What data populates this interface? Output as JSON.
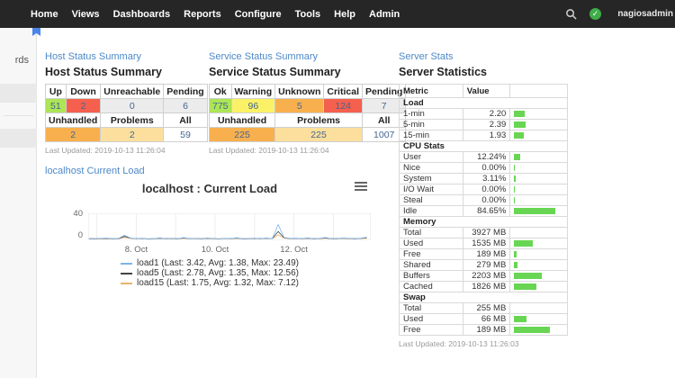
{
  "navbar": {
    "items": [
      "Home",
      "Views",
      "Dashboards",
      "Reports",
      "Configure",
      "Tools",
      "Help",
      "Admin"
    ],
    "user": "nagiosadmin",
    "icons": {
      "search": "search-icon",
      "status": "check-circle-icon",
      "user": "person-icon"
    }
  },
  "sidebar": {
    "fragment": "rds"
  },
  "host": {
    "link_label": "Host Status Summary",
    "title": "Host Status Summary",
    "col_up": "Up",
    "col_down": "Down",
    "col_unreachable": "Unreachable",
    "col_pending": "Pending",
    "up": "51",
    "down": "2",
    "unreachable": "0",
    "pending": "6",
    "col_unhandled": "Unhandled",
    "col_problems": "Problems",
    "col_all": "All",
    "unhandled": "2",
    "problems": "2",
    "all": "59",
    "last_updated": "Last Updated: 2019-10-13 11:26:04"
  },
  "service": {
    "link_label": "Service Status Summary",
    "title": "Service Status Summary",
    "col_ok": "Ok",
    "col_warning": "Warning",
    "col_unknown": "Unknown",
    "col_critical": "Critical",
    "col_pending": "Pending",
    "ok": "775",
    "warning": "96",
    "unknown": "5",
    "critical": "124",
    "pending": "7",
    "col_unhandled": "Unhandled",
    "col_problems": "Problems",
    "col_all": "All",
    "unhandled": "225",
    "problems": "225",
    "all": "1007",
    "last_updated": "Last Updated: 2019-10-13 11:26:04"
  },
  "server_stats": {
    "link_label": "Server Stats",
    "title": "Server Statistics",
    "col_metric": "Metric",
    "col_value": "Value",
    "bar_color": "#68d653",
    "rows": [
      {
        "type": "section",
        "label": "Load"
      },
      {
        "type": "row",
        "label": "1-min",
        "value": "2.20",
        "bar": 22
      },
      {
        "type": "row",
        "label": "5-min",
        "value": "2.39",
        "bar": 24
      },
      {
        "type": "row",
        "label": "15-min",
        "value": "1.93",
        "bar": 19
      },
      {
        "type": "section",
        "label": "CPU Stats"
      },
      {
        "type": "row",
        "label": "User",
        "value": "12.24%",
        "bar": 12
      },
      {
        "type": "row",
        "label": "Nice",
        "value": "0.00%",
        "bar": 1
      },
      {
        "type": "row",
        "label": "System",
        "value": "3.11%",
        "bar": 4
      },
      {
        "type": "row",
        "label": "I/O Wait",
        "value": "0.00%",
        "bar": 1
      },
      {
        "type": "row",
        "label": "Steal",
        "value": "0.00%",
        "bar": 1
      },
      {
        "type": "row",
        "label": "Idle",
        "value": "84.65%",
        "bar": 85
      },
      {
        "type": "section",
        "label": "Memory"
      },
      {
        "type": "row",
        "label": "Total",
        "value": "3927 MB",
        "bar": 0
      },
      {
        "type": "row",
        "label": "Used",
        "value": "1535 MB",
        "bar": 39
      },
      {
        "type": "row",
        "label": "Free",
        "value": "189 MB",
        "bar": 5
      },
      {
        "type": "row",
        "label": "Shared",
        "value": "279 MB",
        "bar": 7
      },
      {
        "type": "row",
        "label": "Buffers",
        "value": "2203 MB",
        "bar": 56
      },
      {
        "type": "row",
        "label": "Cached",
        "value": "1826 MB",
        "bar": 46
      },
      {
        "type": "section",
        "label": "Swap"
      },
      {
        "type": "row",
        "label": "Total",
        "value": "255 MB",
        "bar": 0
      },
      {
        "type": "row",
        "label": "Used",
        "value": "66 MB",
        "bar": 26
      },
      {
        "type": "row",
        "label": "Free",
        "value": "189 MB",
        "bar": 74
      }
    ],
    "last_updated": "Last Updated: 2019-10-13 11:26:03"
  },
  "chart_panel": {
    "link_label": "localhost Current Load",
    "menu_icon": "hamburger-menu-icon"
  },
  "chart_data": {
    "type": "line",
    "title": "localhost : Current Load",
    "ylim": [
      0,
      40
    ],
    "y_tick_labels": [
      "40",
      "0"
    ],
    "x_range_days": [
      6.78,
      13.95
    ],
    "x_gridline_days": [
      7,
      8,
      9,
      10,
      11,
      12,
      13
    ],
    "x_ticks": [
      {
        "day": 8,
        "label": "8. Oct"
      },
      {
        "day": 10,
        "label": "10. Oct"
      },
      {
        "day": 12,
        "label": "12. Oct"
      }
    ],
    "grid": true,
    "legend_position": "bottom",
    "x_start": 6.8,
    "x_step": 0.15,
    "series": [
      {
        "name": "load1",
        "label": "load1 (Last: 3.42, Avg: 1.38, Max: 23.49)",
        "color": "#7cb5ec",
        "last": 3.42,
        "avg": 1.38,
        "max": 23.49,
        "values": [
          1.2,
          0.8,
          1.5,
          2.1,
          0.9,
          1.4,
          6.5,
          2.2,
          1.1,
          1.8,
          0.7,
          1.3,
          2.4,
          1.0,
          1.6,
          0.8,
          2.9,
          1.2,
          1.5,
          0.9,
          2.2,
          1.4,
          0.8,
          1.7,
          1.1,
          2.6,
          0.9,
          1.3,
          1.8,
          1.0,
          2.1,
          1.2,
          23.49,
          2.8,
          1.5,
          1.9,
          1.1,
          2.4,
          0.9,
          1.6,
          2.8,
          1.3,
          1.0,
          2.2,
          1.5,
          0.9,
          1.8,
          3.42
        ]
      },
      {
        "name": "load5",
        "label": "load5 (Last: 2.78, Avg: 1.35, Max: 12.56)",
        "color": "#434348",
        "last": 2.78,
        "avg": 1.35,
        "max": 12.56,
        "values": [
          1.1,
          1.0,
          1.3,
          1.6,
          1.0,
          1.2,
          4.8,
          2.0,
          1.2,
          1.5,
          0.9,
          1.2,
          1.9,
          1.1,
          1.4,
          1.0,
          2.2,
          1.2,
          1.4,
          1.0,
          1.8,
          1.3,
          0.9,
          1.5,
          1.1,
          2.0,
          1.0,
          1.2,
          1.6,
          1.1,
          1.8,
          1.3,
          12.56,
          2.5,
          1.4,
          1.6,
          1.1,
          1.9,
          1.0,
          1.4,
          2.2,
          1.2,
          1.1,
          1.8,
          1.4,
          1.0,
          1.5,
          2.78
        ]
      },
      {
        "name": "load15",
        "label": "load15 (Last: 1.75, Avg: 1.32, Max: 7.12)",
        "color": "#e8b46a",
        "last": 1.75,
        "avg": 1.32,
        "max": 7.12,
        "values": [
          1.0,
          1.0,
          1.1,
          1.3,
          1.0,
          1.1,
          3.2,
          1.6,
          1.1,
          1.3,
          0.9,
          1.1,
          1.5,
          1.0,
          1.2,
          1.0,
          1.7,
          1.1,
          1.2,
          1.0,
          1.4,
          1.2,
          0.9,
          1.3,
          1.0,
          1.6,
          1.0,
          1.1,
          1.3,
          1.0,
          1.5,
          1.2,
          7.12,
          1.9,
          1.2,
          1.4,
          1.0,
          1.5,
          1.0,
          1.2,
          1.7,
          1.1,
          1.0,
          1.4,
          1.2,
          1.0,
          1.3,
          1.75
        ]
      }
    ]
  }
}
